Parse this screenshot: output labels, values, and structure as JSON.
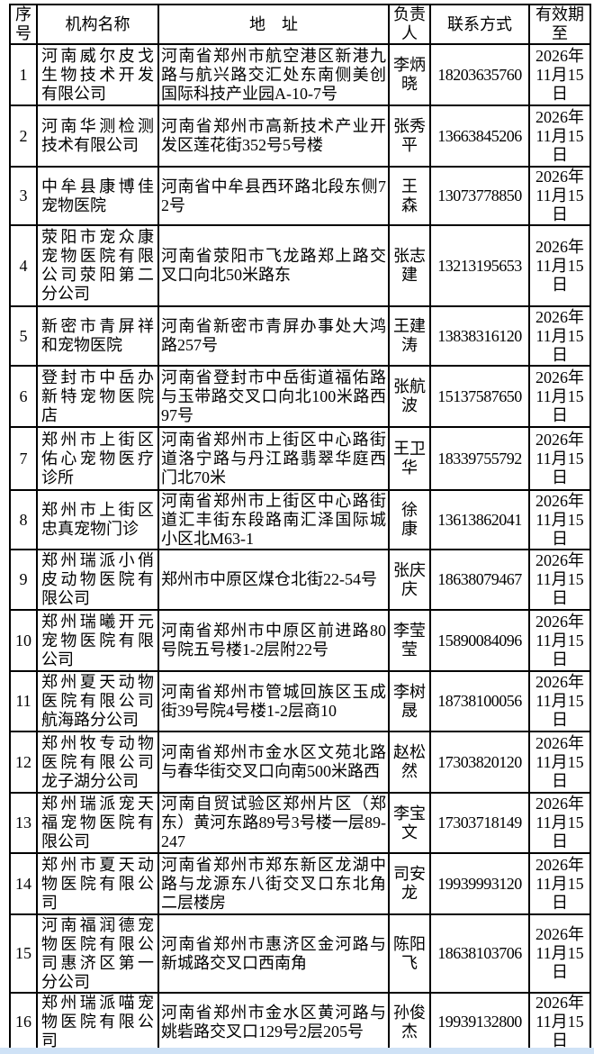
{
  "colors": {
    "border": "#000000",
    "bottom_strip": "#cfe2f6"
  },
  "table": {
    "headers": [
      "序号",
      "机构名称",
      "地　址",
      "负责人",
      "联系方式",
      "有效期至"
    ],
    "rows": [
      {
        "no": "1",
        "name": "河南威尔皮戈生物技术开发有限公司",
        "address": "河南省郑州市航空港区新港九路与航兴路交汇处东南侧美创国际科技产业园A-10-7号",
        "person": "李炳晓",
        "phone": "18203635760",
        "valid": "2026年11月15日"
      },
      {
        "no": "2",
        "name": "河南华测检测技术有限公司",
        "address": "河南省郑州市高新技术产业开发区莲花街352号5号楼",
        "person": "张秀平",
        "phone": "13663845206",
        "valid": "2026年11月15日"
      },
      {
        "no": "3",
        "name": "中牟县康博佳宠物医院",
        "address": "河南省中牟县西环路北段东侧72号",
        "person": "王　森",
        "phone": "13073778850",
        "valid": "2026年11月15日"
      },
      {
        "no": "4",
        "name": "荥阳市宠众康宠物医院有限公司荥阳第二分公司",
        "address": "河南省荥阳市飞龙路郑上路交叉口向北50米路东",
        "person": "张志建",
        "phone": "13213195653",
        "valid": "2026年11月15日"
      },
      {
        "no": "5",
        "name": "新密市青屏祥和宠物医院",
        "address": "河南省新密市青屏办事处大鸿路257号",
        "person": "王建涛",
        "phone": "13838316120",
        "valid": "2026年11月15日"
      },
      {
        "no": "6",
        "name": "登封市中岳办新特宠物医院店",
        "address": "河南省登封市中岳街道福佑路与玉带路交叉口向北100米路西97号",
        "person": "张航波",
        "phone": "15137587650",
        "valid": "2026年11月15日"
      },
      {
        "no": "7",
        "name": "郑州市上街区佑心宠物医疗诊所",
        "address": "河南省郑州市上街区中心路街道洛宁路与丹江路翡翠华庭西门北70米",
        "person": "王卫华",
        "phone": "18339755792",
        "valid": "2026年11月15日"
      },
      {
        "no": "8",
        "name": "郑州市上街区忠真宠物门诊",
        "address": "河南省郑州市上街区中心路街道汇丰街东段路南汇泽国际城小区北M63-1",
        "person": "徐　康",
        "phone": "13613862041",
        "valid": "2026年11月15日"
      },
      {
        "no": "9",
        "name": "郑州瑞派小俏皮动物医院有限公司",
        "address": "郑州市中原区煤仓北街22-54号",
        "person": "张庆庆",
        "phone": "18638079467",
        "valid": "2026年11月15日"
      },
      {
        "no": "10",
        "name": "郑州瑞曦开元宠物医院有限公司",
        "address": "河南省郑州市中原区前进路80号院五号楼1-2层附22号",
        "person": "李莹莹",
        "phone": "15890084096",
        "valid": "2026年11月15日"
      },
      {
        "no": "11",
        "name": "郑州夏天动物医院有限公司航海路分公司",
        "address": "河南省郑州市管城回族区玉成街39号院4号楼1-2层商10",
        "person": "李树晟",
        "phone": "18738100056",
        "valid": "2026年11月15日"
      },
      {
        "no": "12",
        "name": "郑州牧专动物医院有限公司龙子湖分公司",
        "address": "河南省郑州市金水区文苑北路与春华街交叉口向南500米路西",
        "person": "赵松然",
        "phone": "17303820120",
        "valid": "2026年11月15日"
      },
      {
        "no": "13",
        "name": "郑州瑞派宠天福宠物医院有限公司",
        "address": "河南自贸试验区郑州片区（郑东）黄河东路89号3号楼一层89-247",
        "person": "李宝文",
        "phone": "17303718149",
        "valid": "2026年11月15日"
      },
      {
        "no": "14",
        "name": "郑州市夏天动物医院有限公司",
        "address": "河南省郑州市郑东新区龙湖中路与龙源东八街交叉口东北角二层楼房",
        "person": "司安龙",
        "phone": "19939993120",
        "valid": "2026年11月15日"
      },
      {
        "no": "15",
        "name": "河南福润德宠物医院有限公司惠济区第一分公司",
        "address": "河南省郑州市惠济区金河路与新城路交叉口西南角",
        "person": "陈阳飞",
        "phone": "18638103706",
        "valid": "2026年11月15日"
      },
      {
        "no": "16",
        "name": "郑州瑞派喵宠物医院有限公司",
        "address": "河南省郑州市金水区黄河路与姚砦路交叉口129号2层205号",
        "person": "孙俊杰",
        "phone": "19939132800",
        "valid": "2026年11月15日"
      },
      {
        "no": "",
        "name": "",
        "address": "",
        "person": "",
        "phone": "",
        "valid": ""
      }
    ]
  }
}
